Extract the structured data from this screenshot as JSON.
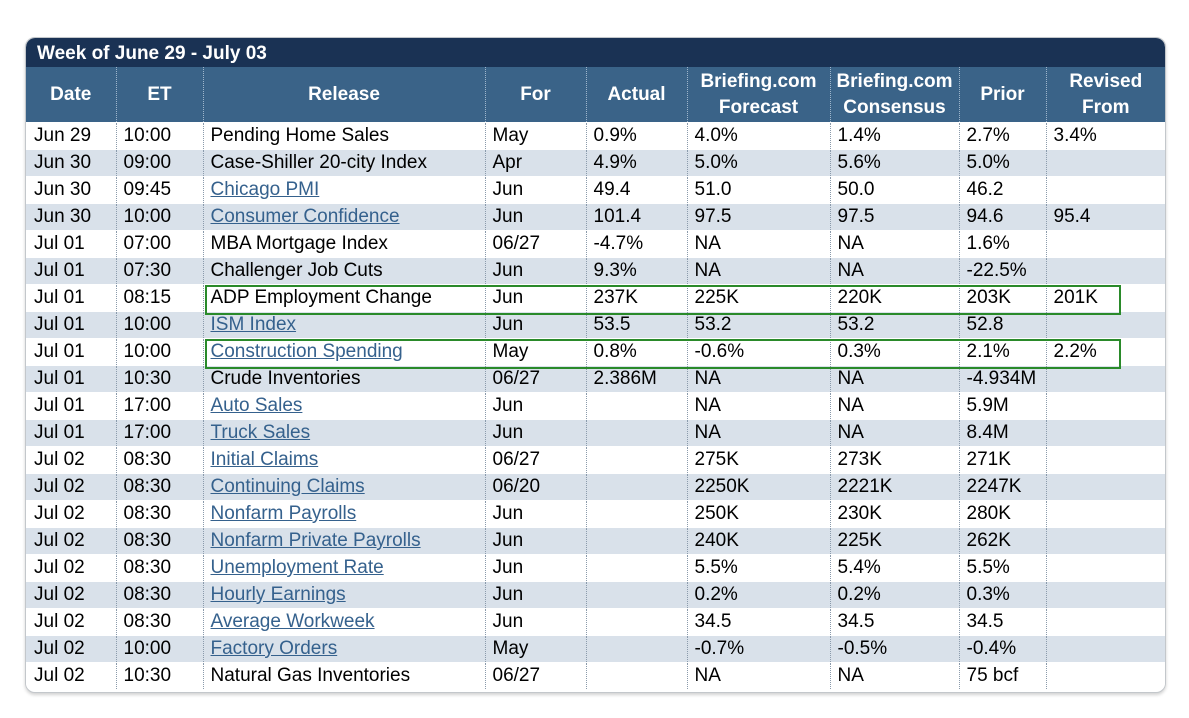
{
  "title": "Week of June 29 - July 03",
  "columns": {
    "date": "Date",
    "et": "ET",
    "release": "Release",
    "for": "For",
    "actual": "Actual",
    "forecast_l1": "Briefing.com",
    "forecast_l2": "Forecast",
    "consensus_l1": "Briefing.com",
    "consensus_l2": "Consensus",
    "prior": "Prior",
    "revised_l1": "Revised",
    "revised_l2": "From"
  },
  "colors": {
    "title_bar": "#1a3254",
    "header": "#3a6388",
    "stripe": "#d9e1ea",
    "link": "#35618d",
    "highlight": "#2a8a2a"
  },
  "rows": [
    {
      "date": "Jun 29",
      "et": "10:00",
      "release": "Pending Home Sales",
      "link": false,
      "for": "May",
      "actual": "0.9%",
      "forecast": "4.0%",
      "consensus": "1.4%",
      "prior": "2.7%",
      "revised": "3.4%"
    },
    {
      "date": "Jun 30",
      "et": "09:00",
      "release": "Case-Shiller 20-city Index",
      "link": false,
      "for": "Apr",
      "actual": "4.9%",
      "forecast": "5.0%",
      "consensus": "5.6%",
      "prior": "5.0%",
      "revised": ""
    },
    {
      "date": "Jun 30",
      "et": "09:45",
      "release": "Chicago PMI",
      "link": true,
      "for": "Jun",
      "actual": "49.4",
      "forecast": "51.0",
      "consensus": "50.0",
      "prior": "46.2",
      "revised": ""
    },
    {
      "date": "Jun 30",
      "et": "10:00",
      "release": "Consumer Confidence",
      "link": true,
      "for": "Jun",
      "actual": "101.4",
      "forecast": "97.5",
      "consensus": "97.5",
      "prior": "94.6",
      "revised": "95.4"
    },
    {
      "date": "Jul 01",
      "et": "07:00",
      "release": "MBA Mortgage Index",
      "link": false,
      "for": "06/27",
      "actual": "-4.7%",
      "forecast": "NA",
      "consensus": "NA",
      "prior": "1.6%",
      "revised": ""
    },
    {
      "date": "Jul 01",
      "et": "07:30",
      "release": "Challenger Job Cuts",
      "link": false,
      "for": "Jun",
      "actual": "9.3%",
      "forecast": "NA",
      "consensus": "NA",
      "prior": "-22.5%",
      "revised": ""
    },
    {
      "date": "Jul 01",
      "et": "08:15",
      "release": "ADP Employment Change",
      "link": false,
      "for": "Jun",
      "actual": "237K",
      "forecast": "225K",
      "consensus": "220K",
      "prior": "203K",
      "revised": "201K",
      "highlighted": true
    },
    {
      "date": "Jul 01",
      "et": "10:00",
      "release": "ISM Index",
      "link": true,
      "for": "Jun",
      "actual": "53.5",
      "forecast": "53.2",
      "consensus": "53.2",
      "prior": "52.8",
      "revised": ""
    },
    {
      "date": "Jul 01",
      "et": "10:00",
      "release": "Construction Spending",
      "link": true,
      "for": "May",
      "actual": "0.8%",
      "forecast": "-0.6%",
      "consensus": "0.3%",
      "prior": "2.1%",
      "revised": "2.2%",
      "highlighted": true
    },
    {
      "date": "Jul 01",
      "et": "10:30",
      "release": "Crude Inventories",
      "link": false,
      "for": "06/27",
      "actual": "2.386M",
      "forecast": "NA",
      "consensus": "NA",
      "prior": "-4.934M",
      "revised": ""
    },
    {
      "date": "Jul 01",
      "et": "17:00",
      "release": "Auto Sales",
      "link": true,
      "for": "Jun",
      "actual": "",
      "forecast": "NA",
      "consensus": "NA",
      "prior": "5.9M",
      "revised": ""
    },
    {
      "date": "Jul 01",
      "et": "17:00",
      "release": "Truck Sales",
      "link": true,
      "for": "Jun",
      "actual": "",
      "forecast": "NA",
      "consensus": "NA",
      "prior": "8.4M",
      "revised": ""
    },
    {
      "date": "Jul 02",
      "et": "08:30",
      "release": "Initial Claims",
      "link": true,
      "for": "06/27",
      "actual": "",
      "forecast": "275K",
      "consensus": "273K",
      "prior": "271K",
      "revised": ""
    },
    {
      "date": "Jul 02",
      "et": "08:30",
      "release": "Continuing Claims",
      "link": true,
      "for": "06/20",
      "actual": "",
      "forecast": "2250K",
      "consensus": "2221K",
      "prior": "2247K",
      "revised": ""
    },
    {
      "date": "Jul 02",
      "et": "08:30",
      "release": "Nonfarm Payrolls",
      "link": true,
      "for": "Jun",
      "actual": "",
      "forecast": "250K",
      "consensus": "230K",
      "prior": "280K",
      "revised": ""
    },
    {
      "date": "Jul 02",
      "et": "08:30",
      "release": "Nonfarm Private Payrolls",
      "link": true,
      "for": "Jun",
      "actual": "",
      "forecast": "240K",
      "consensus": "225K",
      "prior": "262K",
      "revised": ""
    },
    {
      "date": "Jul 02",
      "et": "08:30",
      "release": "Unemployment Rate",
      "link": true,
      "for": "Jun",
      "actual": "",
      "forecast": "5.5%",
      "consensus": "5.4%",
      "prior": "5.5%",
      "revised": ""
    },
    {
      "date": "Jul 02",
      "et": "08:30",
      "release": "Hourly Earnings",
      "link": true,
      "for": "Jun",
      "actual": "",
      "forecast": "0.2%",
      "consensus": "0.2%",
      "prior": "0.3%",
      "revised": ""
    },
    {
      "date": "Jul 02",
      "et": "08:30",
      "release": "Average Workweek",
      "link": true,
      "for": "Jun",
      "actual": "",
      "forecast": "34.5",
      "consensus": "34.5",
      "prior": "34.5",
      "revised": ""
    },
    {
      "date": "Jul 02",
      "et": "10:00",
      "release": "Factory Orders",
      "link": true,
      "for": "May",
      "actual": "",
      "forecast": "-0.7%",
      "consensus": "-0.5%",
      "prior": "-0.4%",
      "revised": ""
    },
    {
      "date": "Jul 02",
      "et": "10:30",
      "release": "Natural Gas Inventories",
      "link": false,
      "for": "06/27",
      "actual": "",
      "forecast": "NA",
      "consensus": "NA",
      "prior": "75 bcf",
      "revised": ""
    }
  ]
}
